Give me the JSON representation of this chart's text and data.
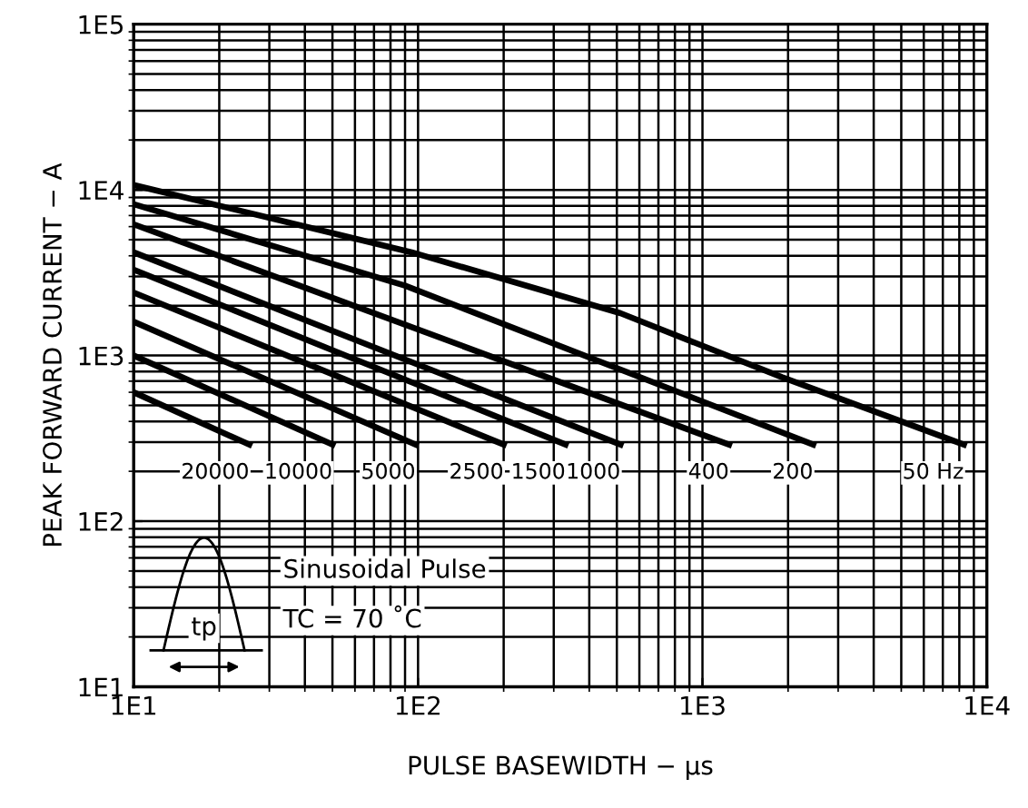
{
  "chart_data": {
    "type": "line",
    "xlabel": "PULSE BASEWIDTH − μs",
    "ylabel": "PEAK FORWARD CURRENT − A",
    "log": "xy",
    "grid": true,
    "legend": false,
    "marker": "none",
    "line_style": "solid",
    "xlim": [
      10,
      10000
    ],
    "ylim": [
      10,
      100000
    ],
    "xticks": [
      {
        "value": 10,
        "label": "1E1"
      },
      {
        "value": 100,
        "label": "1E2"
      },
      {
        "value": 1000,
        "label": "1E3"
      },
      {
        "value": 10000,
        "label": "1E4"
      }
    ],
    "yticks": [
      {
        "value": 10,
        "label": "1E1"
      },
      {
        "value": 100,
        "label": "1E2"
      },
      {
        "value": 1000,
        "label": "1E3"
      },
      {
        "value": 10000,
        "label": "1E4"
      },
      {
        "value": 100000,
        "label": "1E5"
      }
    ],
    "series": [
      {
        "name": "50 Hz",
        "color": "#000000",
        "x": [
          10,
          95,
          515,
          1900,
          8300
        ],
        "values": [
          10700,
          4200,
          1800,
          740,
          290
        ]
      },
      {
        "name": "200",
        "color": "#000000",
        "x": [
          10,
          90,
          2450
        ],
        "values": [
          8200,
          2640,
          290
        ]
      },
      {
        "name": "400",
        "color": "#000000",
        "x": [
          10,
          1240
        ],
        "values": [
          6200,
          290
        ]
      },
      {
        "name": "1000",
        "color": "#000000",
        "x": [
          10,
          515
        ],
        "values": [
          4200,
          290
        ]
      },
      {
        "name": "1500",
        "color": "#000000",
        "x": [
          10,
          330
        ],
        "values": [
          3300,
          290
        ]
      },
      {
        "name": "2500",
        "color": "#000000",
        "x": [
          10,
          200
        ],
        "values": [
          2400,
          290
        ]
      },
      {
        "name": "5000",
        "color": "#000000",
        "x": [
          10,
          98
        ],
        "values": [
          1600,
          290
        ]
      },
      {
        "name": "10000",
        "color": "#000000",
        "x": [
          10,
          50
        ],
        "values": [
          1000,
          290
        ]
      },
      {
        "name": "20000",
        "color": "#000000",
        "x": [
          10,
          25.5
        ],
        "values": [
          600,
          290
        ]
      }
    ],
    "annotations": [
      "tp",
      "Sinusoidal Pulse",
      "TC = 70 ˚C"
    ]
  }
}
